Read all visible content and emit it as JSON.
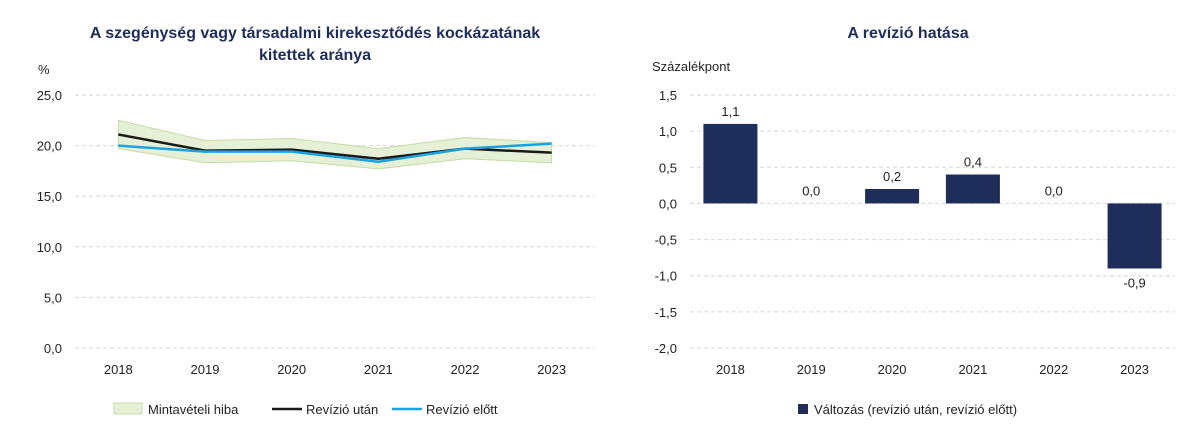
{
  "colors": {
    "title": "#1f2d5a",
    "band_fill": "#e6f0d6",
    "band_stroke": "#c5dca6",
    "after": "#1a1a1a",
    "before": "#1aa3e0",
    "bar": "#1f2d5a",
    "grid": "#d6d6d6"
  },
  "chart_data": [
    {
      "type": "line",
      "title": "A szegénység vagy társadalmi kirekesztődés kockázatának kitettek aránya",
      "title_lines": [
        "A szegénység vagy társadalmi kirekesztődés kockázatának",
        "kitettek aránya"
      ],
      "ylabel": "%",
      "ylim": [
        0,
        25
      ],
      "yticks": [
        0,
        5,
        10,
        15,
        20,
        25
      ],
      "ytick_labels": [
        "0,0",
        "5,0",
        "10,0",
        "15,0",
        "20,0",
        "25,0"
      ],
      "categories": [
        "2018",
        "2019",
        "2020",
        "2021",
        "2022",
        "2023"
      ],
      "grid": true,
      "legend_position": "bottom",
      "band": {
        "name": "Mintavételi hiba",
        "lower": [
          19.7,
          18.3,
          18.5,
          17.7,
          18.7,
          18.3
        ],
        "upper": [
          22.5,
          20.5,
          20.7,
          19.7,
          20.8,
          20.3
        ]
      },
      "series": [
        {
          "name": "Revízió után",
          "values": [
            21.1,
            19.5,
            19.6,
            18.7,
            19.7,
            19.3
          ]
        },
        {
          "name": "Revízió előtt",
          "values": [
            20.0,
            19.4,
            19.4,
            18.4,
            19.7,
            20.2
          ]
        }
      ]
    },
    {
      "type": "bar",
      "title": "A revízió hatása",
      "ylabel": "Százalékpont",
      "ylim": [
        -2.0,
        1.5
      ],
      "yticks": [
        -2.0,
        -1.5,
        -1.0,
        -0.5,
        0.0,
        0.5,
        1.0,
        1.5
      ],
      "ytick_labels": [
        "-2,0",
        "-1,5",
        "-1,0",
        "-0,5",
        "0,0",
        "0,5",
        "1,0",
        "1,5"
      ],
      "categories": [
        "2018",
        "2019",
        "2020",
        "2021",
        "2022",
        "2023"
      ],
      "grid": true,
      "legend_position": "bottom",
      "series": [
        {
          "name": "Változás (revízió után, revízió előtt)",
          "values": [
            1.1,
            0.0,
            0.2,
            0.4,
            0.0,
            -0.9
          ],
          "data_labels": [
            "1,1",
            "0,0",
            "0,2",
            "0,4",
            "0,0",
            "-0,9"
          ]
        }
      ]
    }
  ]
}
